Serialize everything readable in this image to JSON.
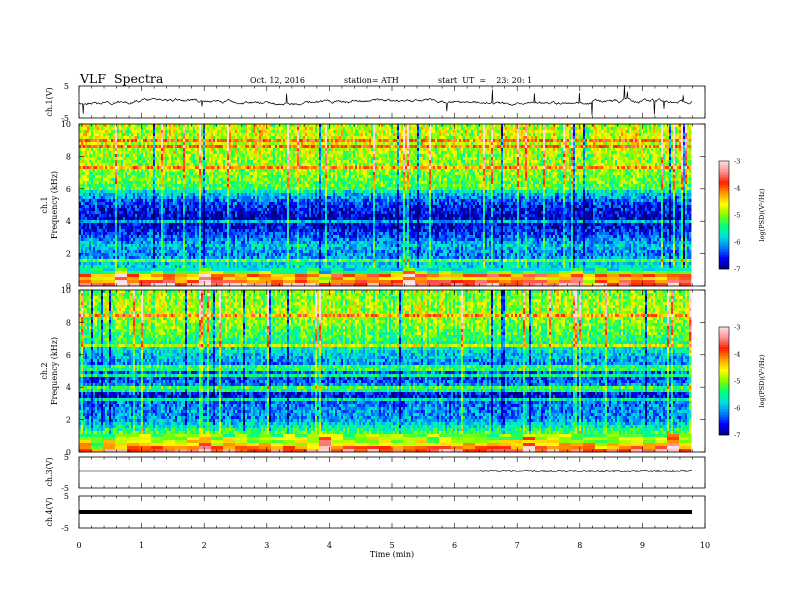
{
  "header": {
    "title": "VLF  Spectra",
    "date": "Oct. 12, 2016",
    "station": "station= ATH",
    "start": "start  UT  =    23: 20: 1"
  },
  "panels": {
    "ch1_label": "ch.1(V)",
    "ch1_ticks": [
      "5",
      "-5"
    ],
    "spec1_label": "ch.1",
    "spec2_label": "ch.2",
    "freq_label": "Frequency  (kHz)",
    "freq_ticks": [
      "0",
      "2",
      "4",
      "6",
      "8",
      "10"
    ],
    "ch3_label": "ch.3(V)",
    "ch3_ticks": [
      "5",
      "-5"
    ],
    "ch4_label": "ch.4(V)",
    "ch4_ticks": [
      "5",
      "-5"
    ]
  },
  "colorbar": {
    "label": "log(PSD)(V²/Hz)",
    "ticks": [
      "-3",
      "-4",
      "-5",
      "-6",
      "-7"
    ],
    "colors": [
      "#000070",
      "#0000ff",
      "#0080ff",
      "#00e0e0",
      "#00ff80",
      "#80ff00",
      "#ffff00",
      "#ffa000",
      "#ff2000",
      "#ff9090",
      "#ffe0e0"
    ]
  },
  "chart_data": {
    "type": "heatmap",
    "xlabel": "Time  (min)",
    "xlim": [
      0,
      10
    ],
    "x_ticks": [
      "0",
      "1",
      "2",
      "3",
      "4",
      "5",
      "6",
      "7",
      "8",
      "9",
      "10"
    ],
    "data_end_min": 9.8,
    "ylabel": "Frequency  (kHz)",
    "ylim": [
      0,
      10
    ],
    "zlabel": "log(PSD)(V²/Hz)",
    "zlim": [
      -7,
      -3
    ],
    "waveform_ylim": [
      -5,
      5
    ],
    "series": [
      {
        "name": "ch.1",
        "freq_kHz": [
          0,
          0.5,
          1,
          2,
          2.5,
          3,
          4,
          5,
          5.8,
          6,
          7,
          8,
          9,
          10
        ],
        "median_log_psd": [
          -3.2,
          -4.5,
          -5.6,
          -6.2,
          -5.9,
          -6.3,
          -6.8,
          -6.5,
          -5.8,
          -5.2,
          -5.0,
          -4.9,
          -4.7,
          -4.8
        ]
      },
      {
        "name": "ch.2",
        "freq_kHz": [
          0,
          0.5,
          1,
          2,
          3,
          3.5,
          4,
          4.5,
          5,
          5.5,
          6,
          7,
          8,
          9,
          10
        ],
        "median_log_psd": [
          -3.4,
          -4.6,
          -5.0,
          -6.1,
          -6.2,
          -6.7,
          -6.0,
          -6.4,
          -6.2,
          -6.1,
          -5.9,
          -5.3,
          -5.0,
          -4.9,
          -5.0
        ]
      }
    ]
  }
}
